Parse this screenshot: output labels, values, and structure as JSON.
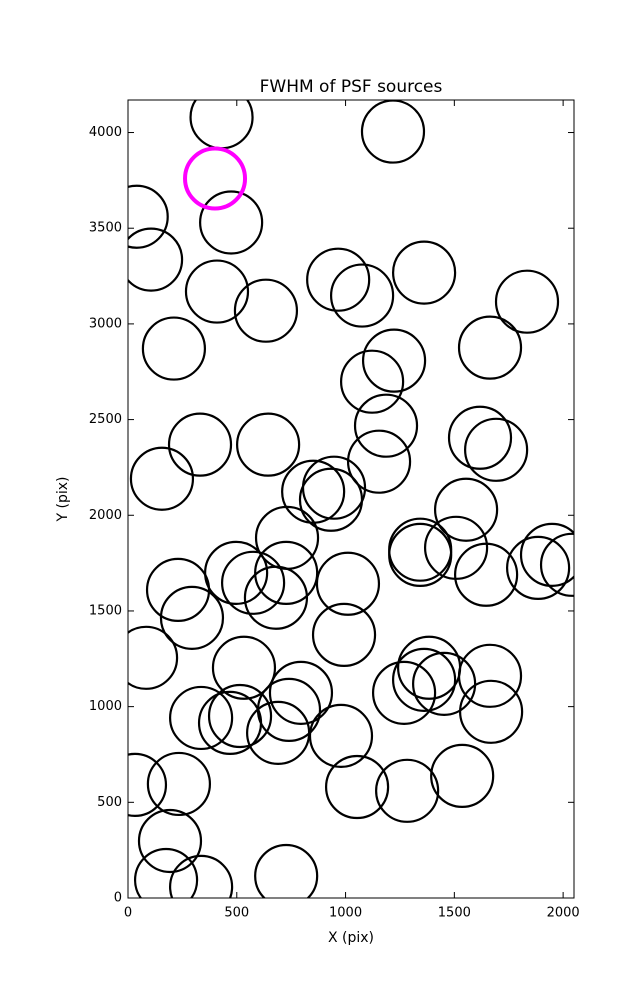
{
  "chart_data": {
    "type": "scatter",
    "title": "FWHM of PSF sources",
    "x_label": "X (pix)",
    "y_label": "Y (pix)",
    "series": [
      {
        "color": "#000000",
        "x": [
          430,
          1218,
          40,
          474,
          106,
          409,
          634,
          966,
          1076,
          1361,
          1834,
          211,
          1223,
          1122,
          1664,
          1186,
          331,
          644,
          1618,
          1692,
          156,
          1154,
          851,
          947,
          933,
          1554,
          731,
          1343,
          1343,
          1508,
          1949,
          1885,
          2041,
          1646,
          497,
          727,
          575,
          230,
          680,
          1011,
          294,
          993,
          83,
          533,
          1384,
          1361,
          1269,
          1453,
          1664,
          795,
          740,
          336,
          515,
          469,
          690,
          979,
          1669,
          32,
          234,
          1053,
          1283,
          1536,
          193,
          175,
          336,
          727
        ],
        "y": [
          4080,
          4005,
          3560,
          3530,
          3336,
          3169,
          3069,
          3231,
          3148,
          3268,
          3116,
          2871,
          2808,
          2698,
          2876,
          2468,
          2369,
          2369,
          2405,
          2342,
          2191,
          2280,
          2123,
          2144,
          2081,
          2029,
          1882,
          1820,
          1793,
          1830,
          1793,
          1725,
          1741,
          1689,
          1699,
          1699,
          1647,
          1610,
          1569,
          1642,
          1464,
          1375,
          1255,
          1203,
          1203,
          1140,
          1072,
          1119,
          1161,
          1072,
          983,
          941,
          951,
          915,
          863,
          847,
          973,
          591,
          596,
          580,
          560,
          638,
          298,
          94,
          58,
          115
        ]
      },
      {
        "color": "#ff00ff",
        "x": [
          400
        ],
        "y": [
          3760
        ]
      }
    ],
    "xlim": [
      0,
      2050
    ],
    "ylim": [
      0,
      4170
    ],
    "xticks": [
      0,
      500,
      1000,
      1500,
      2000
    ],
    "yticks": [
      0,
      500,
      1000,
      1500,
      2000,
      2500,
      3000,
      3500,
      4000
    ]
  }
}
